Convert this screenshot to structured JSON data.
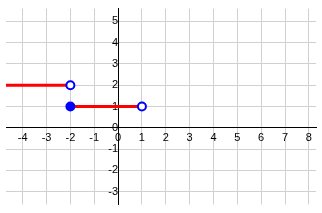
{
  "chart_data": {
    "type": "line",
    "xlim": [
      -4.7,
      8.3
    ],
    "ylim": [
      -3.6,
      5.6
    ],
    "xticks": [
      -4,
      -3,
      -2,
      -1,
      0,
      1,
      2,
      3,
      4,
      5,
      6,
      7,
      8
    ],
    "yticks": [
      -3,
      -2,
      -1,
      0,
      1,
      2,
      3,
      4,
      5
    ],
    "grid": true,
    "series": [
      {
        "x": [
          -4.7,
          -2
        ],
        "values": [
          2,
          2
        ],
        "color": "#ff0000",
        "line_style": "solid",
        "marker": "none"
      },
      {
        "x": [
          -2,
          1
        ],
        "values": [
          1,
          1
        ],
        "color": "#ff0000",
        "line_style": "solid",
        "marker": "none"
      },
      {
        "type": "scatter",
        "x": [
          -2
        ],
        "values": [
          2
        ],
        "color": "#0000ff",
        "marker": "open_circle"
      },
      {
        "type": "scatter",
        "x": [
          -2
        ],
        "values": [
          1
        ],
        "color": "#0000ff",
        "marker": "filled_circle"
      },
      {
        "type": "scatter",
        "x": [
          1
        ],
        "values": [
          1
        ],
        "color": "#0000ff",
        "marker": "open_circle"
      }
    ]
  }
}
